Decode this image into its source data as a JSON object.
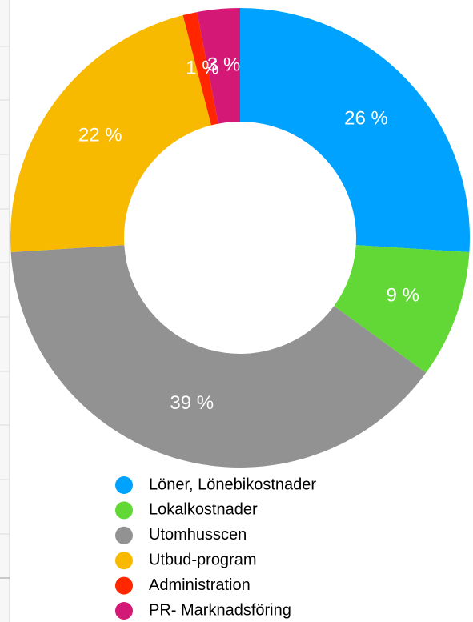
{
  "chart_data": {
    "type": "donut",
    "categories": [
      "Löner, Lönebikostnader",
      "Lokalkostnader",
      "Utomhusscen",
      "Utbud-program",
      "Administration",
      "PR- Marknadsföring"
    ],
    "values": [
      26,
      9,
      39,
      22,
      1,
      3
    ],
    "value_labels": [
      "26 %",
      "9 %",
      "39 %",
      "22 %",
      "1 %",
      "3 %"
    ],
    "colors": [
      "#00a2ff",
      "#61d836",
      "#929292",
      "#f8ba00",
      "#ff2600",
      "#d31876"
    ],
    "legend": "bottom"
  }
}
